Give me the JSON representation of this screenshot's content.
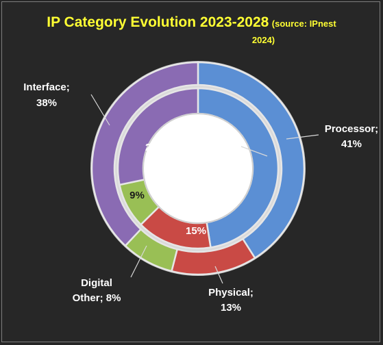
{
  "chart_data": {
    "type": "donut",
    "title": "IP Category Evolution 2023-2028",
    "subtitle_line1": "(source: IPnest",
    "subtitle_line2": "2024)",
    "categories": [
      "Processor",
      "Physical",
      "Digital Other",
      "Interface"
    ],
    "series": [
      {
        "ring": "inner",
        "values": [
          47,
          15,
          9,
          28
        ]
      },
      {
        "ring": "outer",
        "values": [
          41,
          13,
          8,
          38
        ]
      }
    ],
    "colors": {
      "Processor": "#5b8fd4",
      "Physical": "#c94a45",
      "Digital Other": "#99bf55",
      "Interface": "#8a6bb3"
    },
    "outer_labels": [
      {
        "category": "Processor",
        "lines": [
          "Processor;",
          "41%"
        ]
      },
      {
        "category": "Physical",
        "lines": [
          "Physical;",
          "13%"
        ]
      },
      {
        "category": "Digital Other",
        "lines": [
          "Digital",
          "Other; 8%"
        ]
      },
      {
        "category": "Interface",
        "lines": [
          "Interface;",
          "38%"
        ]
      }
    ],
    "inner_labels": [
      "47%",
      "15%",
      "9%",
      "28%"
    ]
  }
}
